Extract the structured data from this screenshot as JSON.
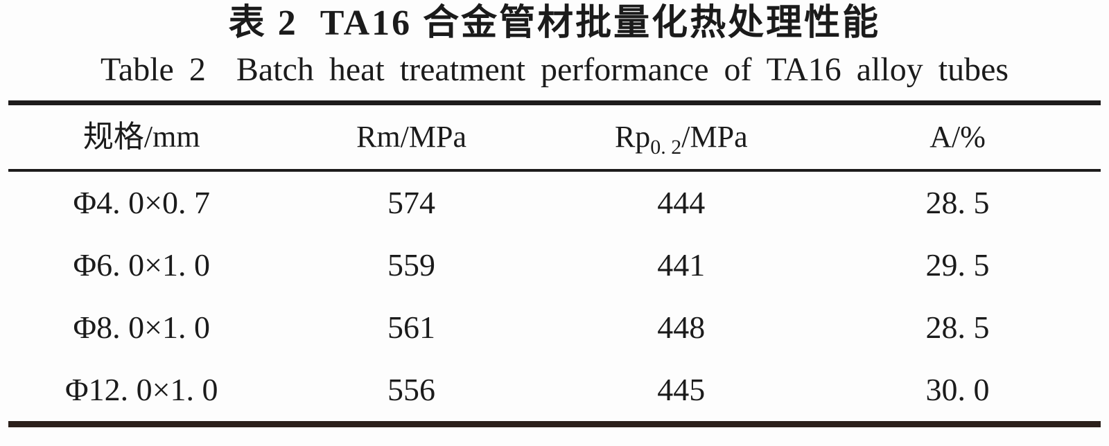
{
  "titles": {
    "zh": "表 2  TA16 合金管材批量化热处理性能",
    "en": "Table 2  Batch heat treatment performance of TA16 alloy tubes"
  },
  "table": {
    "columns": [
      {
        "label": "规格/mm"
      },
      {
        "label": "Rm/MPa"
      },
      {
        "label_prefix": "Rp",
        "label_sub": "0. 2",
        "label_suffix": "/MPa"
      },
      {
        "label": "A/%"
      }
    ],
    "rows": [
      {
        "spec": "Φ4. 0×0. 7",
        "rm": "574",
        "rp02": "444",
        "a": "28. 5"
      },
      {
        "spec": "Φ6. 0×1. 0",
        "rm": "559",
        "rp02": "441",
        "a": "29. 5"
      },
      {
        "spec": "Φ8. 0×1. 0",
        "rm": "561",
        "rp02": "448",
        "a": "28. 5"
      },
      {
        "spec": "Φ12. 0×1. 0",
        "rm": "556",
        "rp02": "445",
        "a": "30. 0"
      }
    ]
  },
  "chart_data": {
    "type": "table",
    "title": "表2 TA16合金管材批量化热处理性能 / Table 2 Batch heat treatment performance of TA16 alloy tubes",
    "columns": [
      "规格/mm",
      "Rm/MPa",
      "Rp0.2/MPa",
      "A/%"
    ],
    "rows": [
      [
        "Φ4.0×0.7",
        574,
        444,
        28.5
      ],
      [
        "Φ6.0×1.0",
        559,
        441,
        29.5
      ],
      [
        "Φ8.0×1.0",
        561,
        448,
        28.5
      ],
      [
        "Φ12.0×1.0",
        556,
        445,
        30.0
      ]
    ]
  },
  "colors": {
    "text": "#1b1b1b",
    "rule": "#1e1c1c",
    "bottom_rule": "#2b201b",
    "background": "#fdfdfd"
  }
}
